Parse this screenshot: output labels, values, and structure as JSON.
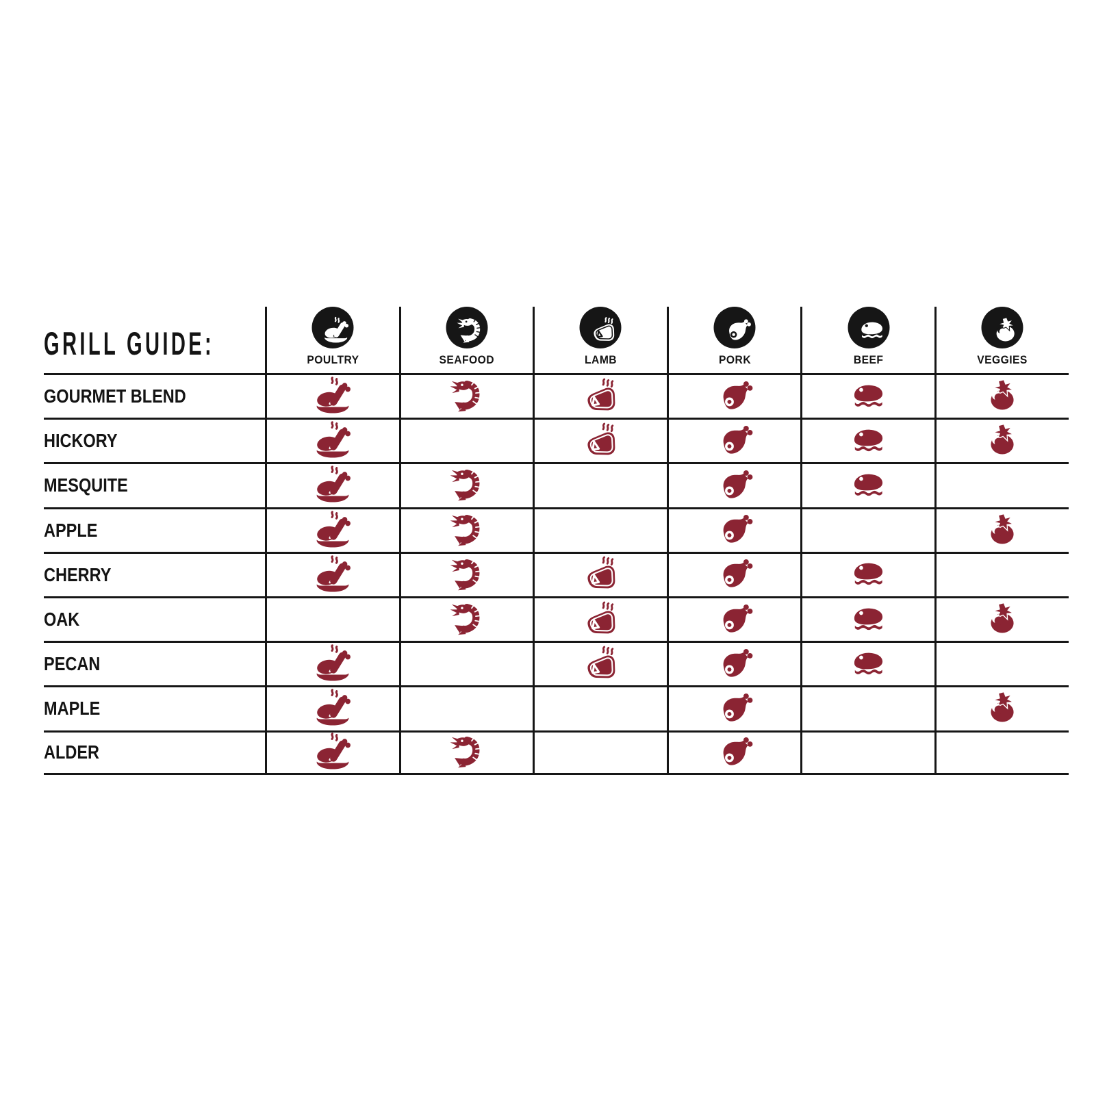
{
  "colors": {
    "ink": "#161616",
    "maroon": "#8B2433",
    "background": "#FFFFFF"
  },
  "chart_data": {
    "type": "table",
    "title": "GRILL GUIDE:",
    "legend_position": "top",
    "grid": true,
    "columns": [
      {
        "id": "poultry",
        "label": "POULTRY",
        "icon": "poultry-icon"
      },
      {
        "id": "seafood",
        "label": "SEAFOOD",
        "icon": "shrimp-icon"
      },
      {
        "id": "lamb",
        "label": "LAMB",
        "icon": "lamb-chop-icon"
      },
      {
        "id": "pork",
        "label": "PORK",
        "icon": "ham-icon"
      },
      {
        "id": "beef",
        "label": "BEEF",
        "icon": "steak-icon"
      },
      {
        "id": "veggies",
        "label": "VEGGIES",
        "icon": "tomato-icon"
      }
    ],
    "rows": [
      {
        "label": "GOURMET BLEND",
        "pairings": [
          true,
          true,
          true,
          true,
          true,
          true
        ]
      },
      {
        "label": "HICKORY",
        "pairings": [
          true,
          false,
          true,
          true,
          true,
          true
        ]
      },
      {
        "label": "MESQUITE",
        "pairings": [
          true,
          true,
          false,
          true,
          true,
          false
        ]
      },
      {
        "label": "APPLE",
        "pairings": [
          true,
          true,
          false,
          true,
          false,
          true
        ]
      },
      {
        "label": "CHERRY",
        "pairings": [
          true,
          true,
          true,
          true,
          true,
          false
        ]
      },
      {
        "label": "OAK",
        "pairings": [
          false,
          true,
          true,
          true,
          true,
          true
        ]
      },
      {
        "label": "PECAN",
        "pairings": [
          true,
          false,
          true,
          true,
          true,
          false
        ]
      },
      {
        "label": "MAPLE",
        "pairings": [
          true,
          false,
          false,
          true,
          false,
          true
        ]
      },
      {
        "label": "ALDER",
        "pairings": [
          true,
          true,
          false,
          true,
          false,
          false
        ]
      }
    ]
  }
}
